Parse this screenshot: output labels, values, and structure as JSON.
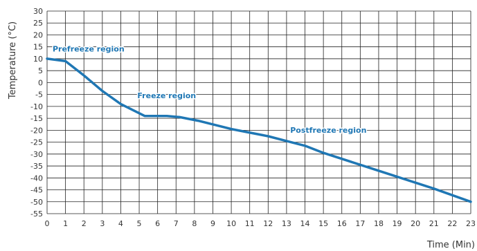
{
  "chart_data": {
    "type": "line",
    "xlabel": "Time (Min)",
    "ylabel": "Temperature (°C)",
    "xlim": [
      0,
      23
    ],
    "ylim": [
      -55,
      30
    ],
    "x_ticks": [
      0,
      1,
      2,
      3,
      4,
      5,
      6,
      7,
      8,
      9,
      10,
      11,
      12,
      13,
      14,
      15,
      16,
      17,
      18,
      19,
      20,
      21,
      22,
      23
    ],
    "y_ticks": [
      30,
      25,
      20,
      15,
      10,
      5,
      0,
      -5,
      -10,
      -15,
      -20,
      -25,
      -30,
      -35,
      -40,
      -45,
      -50,
      -55
    ],
    "grid": true,
    "series": [
      {
        "color": "#1f77b4",
        "x": [
          0,
          1,
          2,
          3,
          4,
          5.3,
          6.5,
          7.2,
          8.2,
          10,
          12,
          13,
          14,
          15,
          17,
          19,
          21,
          23
        ],
        "y": [
          10,
          9,
          3,
          -3.5,
          -9,
          -14,
          -14,
          -14.5,
          -16,
          -19.5,
          -22.5,
          -24.5,
          -26.5,
          -29.5,
          -34.5,
          -39.5,
          -44.5,
          -50
        ]
      }
    ],
    "annotations": [
      {
        "text": "Prefreeze region",
        "x": 0.3,
        "y": 13
      },
      {
        "text": "Freeze region",
        "x": 4.9,
        "y": -6.5
      },
      {
        "text": "Postfreeze region",
        "x": 13.2,
        "y": -21
      }
    ]
  }
}
